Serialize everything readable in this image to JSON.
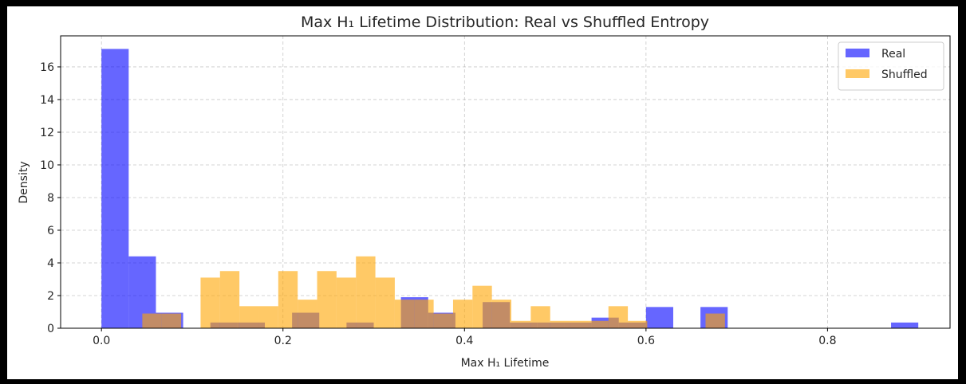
{
  "chart_data": {
    "type": "bar",
    "title": "Max H₁ Lifetime Distribution: Real vs Shuffled Entropy",
    "xlabel": "Max H₁ Lifetime",
    "ylabel": "Density",
    "xlim": [
      -0.045,
      0.935
    ],
    "ylim": [
      0,
      17.9
    ],
    "xticks": [
      0.0,
      0.2,
      0.4,
      0.6,
      0.8
    ],
    "xtick_labels": [
      "0.0",
      "0.2",
      "0.4",
      "0.6",
      "0.8"
    ],
    "yticks": [
      0,
      2,
      4,
      6,
      8,
      10,
      12,
      14,
      16
    ],
    "ytick_labels": [
      "0",
      "2",
      "4",
      "6",
      "8",
      "10",
      "12",
      "14",
      "16"
    ],
    "grid": true,
    "legend_position": "top-right",
    "series": [
      {
        "name": "Real",
        "color": "#0000ff",
        "opacity": 0.6,
        "bin_width": 0.03,
        "bars": [
          {
            "x0": 0.0,
            "value": 17.1
          },
          {
            "x0": 0.03,
            "value": 4.4
          },
          {
            "x0": 0.06,
            "value": 0.95
          },
          {
            "x0": 0.12,
            "value": 0.35
          },
          {
            "x0": 0.15,
            "value": 0.35
          },
          {
            "x0": 0.21,
            "value": 0.95
          },
          {
            "x0": 0.27,
            "value": 0.35
          },
          {
            "x0": 0.33,
            "value": 1.9
          },
          {
            "x0": 0.36,
            "value": 0.95
          },
          {
            "x0": 0.42,
            "value": 1.6
          },
          {
            "x0": 0.45,
            "value": 0.35
          },
          {
            "x0": 0.48,
            "value": 0.35
          },
          {
            "x0": 0.51,
            "value": 0.35
          },
          {
            "x0": 0.54,
            "value": 0.65
          },
          {
            "x0": 0.57,
            "value": 0.35
          },
          {
            "x0": 0.6,
            "value": 1.3
          },
          {
            "x0": 0.66,
            "value": 1.3
          },
          {
            "x0": 0.87,
            "value": 0.35
          }
        ]
      },
      {
        "name": "Shuffled",
        "color": "#ffa500",
        "opacity": 0.6,
        "bin_width": 0.0214,
        "bars": [
          {
            "x0": 0.045,
            "value": 0.9
          },
          {
            "x0": 0.0664,
            "value": 0.9
          },
          {
            "x0": 0.1092,
            "value": 3.1
          },
          {
            "x0": 0.1306,
            "value": 3.5
          },
          {
            "x0": 0.152,
            "value": 1.35
          },
          {
            "x0": 0.1734,
            "value": 1.35
          },
          {
            "x0": 0.1948,
            "value": 3.5
          },
          {
            "x0": 0.2162,
            "value": 1.75
          },
          {
            "x0": 0.2376,
            "value": 3.5
          },
          {
            "x0": 0.259,
            "value": 3.1
          },
          {
            "x0": 0.2804,
            "value": 4.4
          },
          {
            "x0": 0.3018,
            "value": 3.1
          },
          {
            "x0": 0.3232,
            "value": 1.75
          },
          {
            "x0": 0.3446,
            "value": 1.75
          },
          {
            "x0": 0.366,
            "value": 0.9
          },
          {
            "x0": 0.3874,
            "value": 1.75
          },
          {
            "x0": 0.4088,
            "value": 2.6
          },
          {
            "x0": 0.4302,
            "value": 1.75
          },
          {
            "x0": 0.4516,
            "value": 0.45
          },
          {
            "x0": 0.473,
            "value": 1.35
          },
          {
            "x0": 0.4944,
            "value": 0.45
          },
          {
            "x0": 0.5158,
            "value": 0.45
          },
          {
            "x0": 0.5372,
            "value": 0.45
          },
          {
            "x0": 0.5586,
            "value": 1.35
          },
          {
            "x0": 0.58,
            "value": 0.45
          },
          {
            "x0": 0.6656,
            "value": 0.9
          }
        ]
      }
    ]
  }
}
